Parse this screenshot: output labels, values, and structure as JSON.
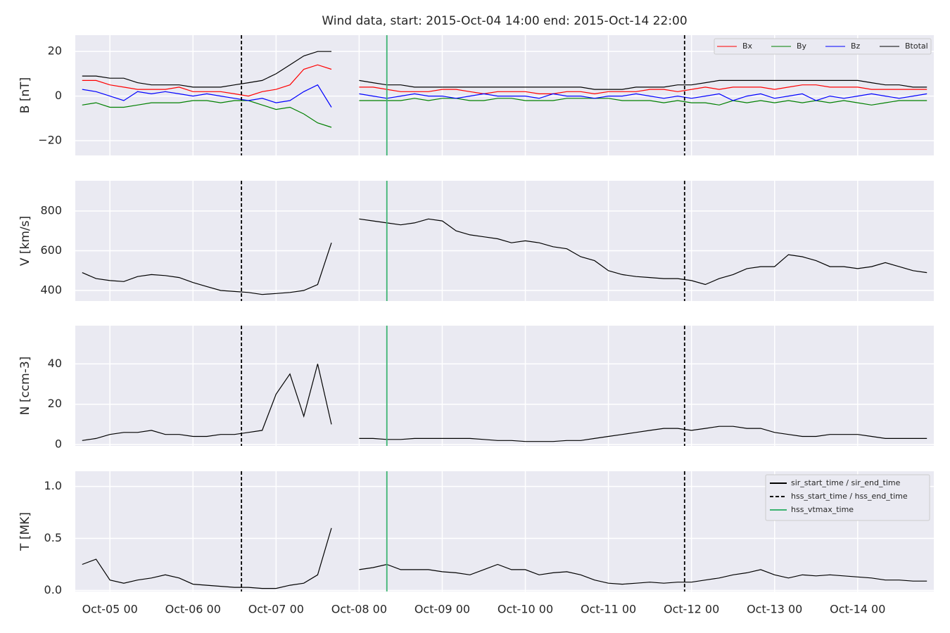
{
  "title": "Wind data, start: 2015-Oct-04 14:00  end: 2015-Oct-14 22:00",
  "x_axis": {
    "x": [
      "Oct-04 16",
      "Oct-04 20",
      "Oct-05 00",
      "Oct-05 04",
      "Oct-05 08",
      "Oct-05 12",
      "Oct-05 16",
      "Oct-05 20",
      "Oct-06 00",
      "Oct-06 04",
      "Oct-06 08",
      "Oct-06 12",
      "Oct-06 16",
      "Oct-06 20",
      "Oct-07 00",
      "Oct-07 04",
      "Oct-07 08",
      "Oct-07 12",
      "Oct-07 16",
      "Oct-07 20",
      "Oct-08 00",
      "Oct-08 04",
      "Oct-08 08",
      "Oct-08 12",
      "Oct-08 16",
      "Oct-08 20",
      "Oct-09 00",
      "Oct-09 04",
      "Oct-09 08",
      "Oct-09 12",
      "Oct-09 16",
      "Oct-09 20",
      "Oct-10 00",
      "Oct-10 04",
      "Oct-10 08",
      "Oct-10 12",
      "Oct-10 16",
      "Oct-10 20",
      "Oct-11 00",
      "Oct-11 04",
      "Oct-11 08",
      "Oct-11 12",
      "Oct-11 16",
      "Oct-11 20",
      "Oct-12 00",
      "Oct-12 04",
      "Oct-12 08",
      "Oct-12 12",
      "Oct-12 16",
      "Oct-12 20",
      "Oct-13 00",
      "Oct-13 04",
      "Oct-13 08",
      "Oct-13 12",
      "Oct-13 16",
      "Oct-13 20",
      "Oct-14 00",
      "Oct-14 04",
      "Oct-14 08",
      "Oct-14 12",
      "Oct-14 16",
      "Oct-14 20"
    ],
    "xlim": [
      "Oct-04 14",
      "Oct-14 22"
    ],
    "xticks": [
      "Oct-05 00",
      "Oct-06 00",
      "Oct-07 00",
      "Oct-08 00",
      "Oct-09 00",
      "Oct-10 00",
      "Oct-11 00",
      "Oct-12 00",
      "Oct-13 00",
      "Oct-14 00"
    ]
  },
  "markers": {
    "legend": "upper right",
    "items": [
      {
        "name": "sir_start_time / sir_end_time",
        "style": "solid",
        "color": "#000000",
        "x": []
      },
      {
        "name": "hss_start_time / hss_end_time",
        "style": "dashed",
        "color": "#000000",
        "x": [
          "Oct-06 14",
          "Oct-11 22"
        ]
      },
      {
        "name": "hss_vtmax_time",
        "style": "solid",
        "color": "#3cb371",
        "x": [
          "Oct-08 08"
        ]
      }
    ]
  },
  "chart_data": [
    {
      "type": "line",
      "ylabel": "B [nT]",
      "ylim": [
        -26.6,
        27.3
      ],
      "yticks": [
        {
          "value": -20,
          "label": "−20"
        },
        0,
        20
      ],
      "grid": true,
      "legend": "upper right",
      "series": [
        {
          "name": "Bx",
          "color": "#ff0000",
          "values": [
            7,
            7,
            5,
            4,
            3,
            3,
            3,
            4,
            2,
            2,
            2,
            1,
            0,
            2,
            3,
            5,
            12,
            14,
            12,
            null,
            4,
            4,
            3,
            2,
            2,
            2,
            3,
            3,
            2,
            1,
            2,
            2,
            2,
            1,
            1,
            2,
            2,
            1,
            2,
            2,
            2,
            3,
            3,
            2,
            3,
            4,
            3,
            4,
            4,
            4,
            3,
            4,
            5,
            5,
            4,
            4,
            4,
            3,
            3,
            3,
            3,
            3
          ]
        },
        {
          "name": "By",
          "color": "#008000",
          "values": [
            -4,
            -3,
            -5,
            -5,
            -4,
            -3,
            -3,
            -3,
            -2,
            -2,
            -3,
            -2,
            -2,
            -4,
            -6,
            -5,
            -8,
            -12,
            -14,
            null,
            -2,
            -2,
            -2,
            -2,
            -1,
            -2,
            -1,
            -1,
            -2,
            -2,
            -1,
            -1,
            -2,
            -2,
            -2,
            -1,
            -1,
            -1,
            -1,
            -2,
            -2,
            -2,
            -3,
            -2,
            -3,
            -3,
            -4,
            -2,
            -3,
            -2,
            -3,
            -2,
            -3,
            -2,
            -3,
            -2,
            -3,
            -4,
            -3,
            -2,
            -2,
            -2
          ]
        },
        {
          "name": "Bz",
          "color": "#0000ff",
          "values": [
            3,
            2,
            0,
            -2,
            2,
            1,
            2,
            1,
            0,
            1,
            0,
            -1,
            -2,
            -1,
            -3,
            -2,
            2,
            5,
            -5,
            null,
            1,
            0,
            -1,
            0,
            1,
            0,
            0,
            -1,
            0,
            1,
            0,
            0,
            0,
            -1,
            1,
            0,
            0,
            -1,
            0,
            0,
            1,
            0,
            -1,
            0,
            -1,
            0,
            1,
            -2,
            0,
            1,
            -1,
            0,
            1,
            -2,
            0,
            -1,
            0,
            1,
            0,
            -1,
            0,
            1
          ]
        },
        {
          "name": "Btotal",
          "color": "#000000",
          "values": [
            9,
            9,
            8,
            8,
            6,
            5,
            5,
            5,
            4,
            4,
            4,
            5,
            6,
            7,
            10,
            14,
            18,
            20,
            20,
            null,
            7,
            6,
            5,
            5,
            4,
            4,
            4,
            4,
            4,
            4,
            4,
            4,
            4,
            4,
            4,
            4,
            4,
            3,
            3,
            3,
            4,
            4,
            4,
            5,
            5,
            6,
            7,
            7,
            7,
            7,
            7,
            7,
            7,
            7,
            7,
            7,
            7,
            6,
            5,
            5,
            4,
            4
          ]
        }
      ]
    },
    {
      "type": "line",
      "ylabel": "V [km/s]",
      "ylim": [
        347,
        952
      ],
      "yticks": [
        400,
        600,
        800
      ],
      "grid": true,
      "series": [
        {
          "name": "V",
          "color": "#000000",
          "values": [
            490,
            460,
            450,
            445,
            470,
            480,
            475,
            465,
            440,
            420,
            400,
            395,
            390,
            380,
            385,
            390,
            400,
            430,
            640,
            null,
            760,
            750,
            740,
            730,
            740,
            760,
            750,
            700,
            680,
            670,
            660,
            640,
            650,
            640,
            620,
            610,
            570,
            550,
            500,
            480,
            470,
            465,
            460,
            460,
            450,
            430,
            460,
            480,
            510,
            520,
            520,
            580,
            570,
            550,
            520,
            520,
            510,
            520,
            540,
            520,
            500,
            490
          ]
        }
      ]
    },
    {
      "type": "line",
      "ylabel": "N [ccm-3]",
      "ylim": [
        -0.7,
        59
      ],
      "yticks": [
        0,
        20,
        40
      ],
      "grid": true,
      "series": [
        {
          "name": "N",
          "color": "#000000",
          "values": [
            2,
            3,
            5,
            6,
            6,
            7,
            5,
            5,
            4,
            4,
            5,
            5,
            6,
            7,
            25,
            35,
            14,
            40,
            10,
            null,
            3,
            3,
            2.5,
            2.5,
            3,
            3,
            3,
            3,
            3,
            2.5,
            2,
            2,
            1.5,
            1.5,
            1.5,
            2,
            2,
            3,
            4,
            5,
            6,
            7,
            8,
            8,
            7,
            8,
            9,
            9,
            8,
            8,
            6,
            5,
            4,
            4,
            5,
            5,
            5,
            4,
            3,
            3,
            3,
            3
          ]
        }
      ]
    },
    {
      "type": "line",
      "ylabel": "T [MK]",
      "ylim": [
        -0.01,
        1.146
      ],
      "yticks": [
        {
          "value": 0,
          "label": "0.0"
        },
        0.5,
        {
          "value": 1,
          "label": "1.0"
        }
      ],
      "grid": true,
      "series": [
        {
          "name": "T",
          "color": "#000000",
          "values": [
            0.25,
            0.3,
            0.1,
            0.07,
            0.1,
            0.12,
            0.15,
            0.12,
            0.06,
            0.05,
            0.04,
            0.03,
            0.03,
            0.02,
            0.02,
            0.05,
            0.07,
            0.15,
            0.6,
            null,
            0.2,
            0.22,
            0.25,
            0.2,
            0.2,
            0.2,
            0.18,
            0.17,
            0.15,
            0.2,
            0.25,
            0.2,
            0.2,
            0.15,
            0.17,
            0.18,
            0.15,
            0.1,
            0.07,
            0.06,
            0.07,
            0.08,
            0.07,
            0.08,
            0.08,
            0.1,
            0.12,
            0.15,
            0.17,
            0.2,
            0.15,
            0.12,
            0.15,
            0.14,
            0.15,
            0.14,
            0.13,
            0.12,
            0.1,
            0.1,
            0.09,
            0.09
          ]
        }
      ]
    }
  ]
}
